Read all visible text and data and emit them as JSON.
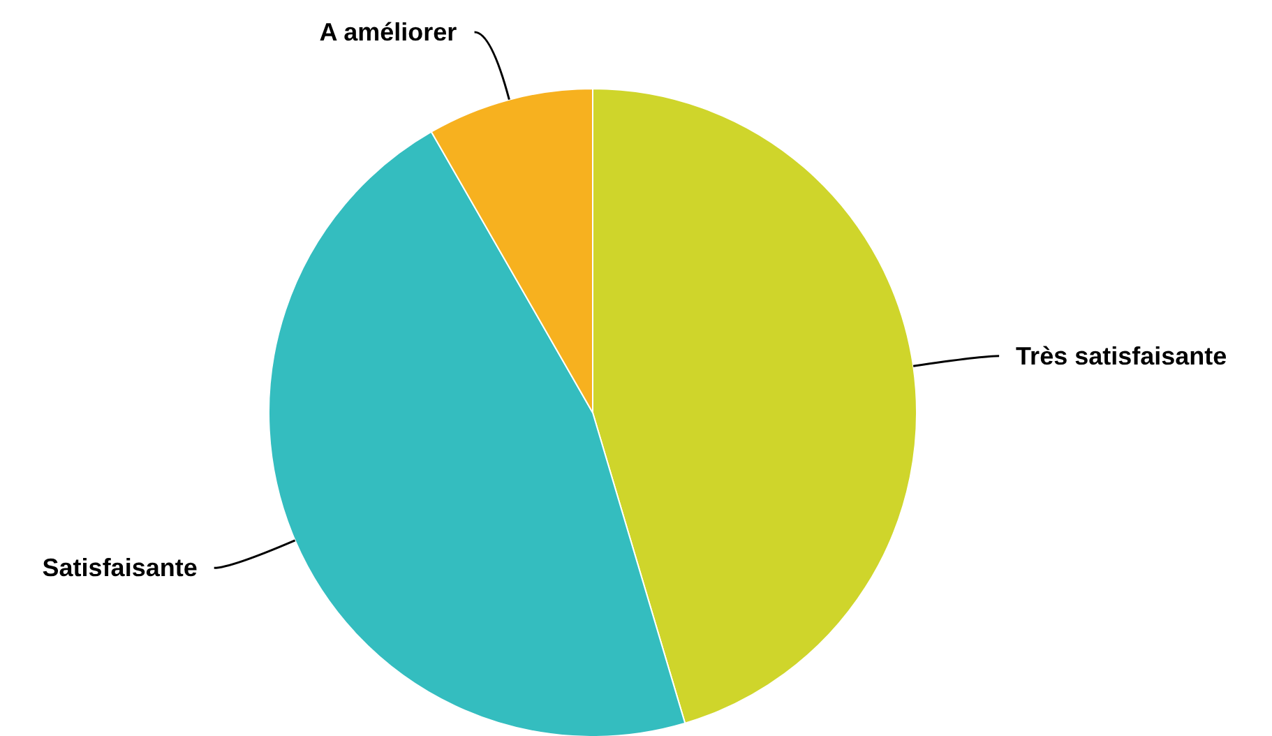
{
  "chart_data": {
    "type": "pie",
    "categories": [
      "Très satisfaisante",
      "Satisfaisante",
      "A améliorer"
    ],
    "values": [
      45.4,
      46.3,
      8.3
    ],
    "colors": [
      "#cfd52b",
      "#34bdbf",
      "#f7b11f"
    ]
  }
}
